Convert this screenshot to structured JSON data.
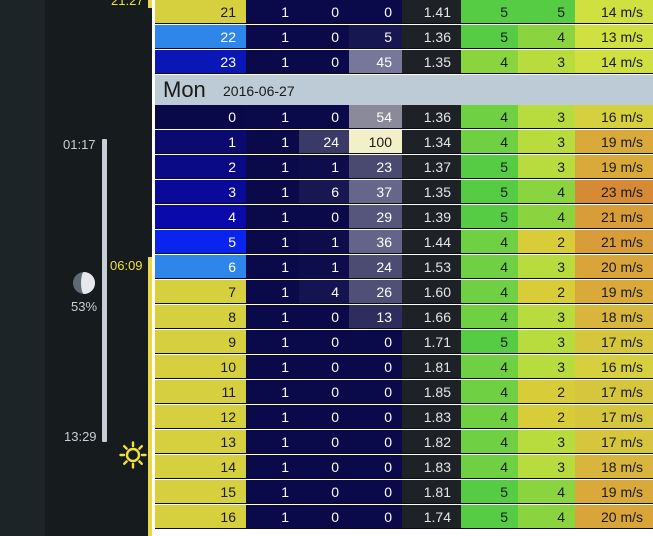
{
  "colors": {
    "sidebar_bg": "#161b1e",
    "day_header_bg": "#bccbd6",
    "moonlight_bar": "#c7ced3",
    "sunlight_bar": "#e8d84a"
  },
  "sidebar": {
    "top_time": "21:27",
    "moonrise_time": "01:17",
    "moonset_time": "13:29",
    "sunrise_time": "06:09",
    "moon_illumination": "53%",
    "moon_icon": "moon-phase-icon",
    "sun_icon": "sun-icon"
  },
  "day_header": {
    "day": "Mon",
    "date": "2016-06-27"
  },
  "rows_prev": [
    {
      "hour": "21",
      "a": "1",
      "b": "0",
      "c": "0",
      "d": "1.41",
      "e": "5",
      "f": "5",
      "g": "14 m/s",
      "hour_bg": "#d6cf3e",
      "hour_fg": "#1a1a1a",
      "b_bg": "#0a0a4a",
      "c_bg": "#0a0a4a",
      "c_fg": "#ffffff",
      "e_bg": "#55cc44",
      "f_bg": "#55cc44",
      "g_bg": "#cfe040"
    },
    {
      "hour": "22",
      "a": "1",
      "b": "0",
      "c": "5",
      "d": "1.36",
      "e": "5",
      "f": "4",
      "g": "13 m/s",
      "hour_bg": "#2f86ea",
      "hour_fg": "#ffffff",
      "b_bg": "#0a0a4a",
      "c_bg": "#161650",
      "c_fg": "#ffffff",
      "e_bg": "#55cc44",
      "f_bg": "#8ad53f",
      "g_bg": "#cfe040"
    },
    {
      "hour": "23",
      "a": "1",
      "b": "0",
      "c": "45",
      "d": "1.35",
      "e": "4",
      "f": "3",
      "g": "14 m/s",
      "hour_bg": "#0a16b5",
      "hour_fg": "#ffffff",
      "b_bg": "#0a0a4a",
      "c_bg": "#777799",
      "c_fg": "#ffffff",
      "e_bg": "#8ad53f",
      "f_bg": "#b8dc3e",
      "g_bg": "#cfe040"
    }
  ],
  "rows_day": [
    {
      "hour": "0",
      "a": "1",
      "b": "0",
      "c": "54",
      "d": "1.36",
      "e": "4",
      "f": "3",
      "g": "16 m/s",
      "hour_bg": "#09094a",
      "hour_fg": "#ffffff",
      "b_bg": "#0a0a4a",
      "c_bg": "#8a8a9a",
      "c_fg": "#ffffff",
      "e_bg": "#6ed042",
      "f_bg": "#b8dc3e",
      "g_bg": "#d6cf3e"
    },
    {
      "hour": "1",
      "a": "1",
      "b": "24",
      "c": "100",
      "d": "1.34",
      "e": "4",
      "f": "3",
      "g": "19 m/s",
      "hour_bg": "#0a0a70",
      "hour_fg": "#ffffff",
      "b_bg": "#3a3a66",
      "c_bg": "#f1f0c8",
      "c_fg": "#1a1a1a",
      "e_bg": "#6ed042",
      "f_bg": "#b8dc3e",
      "g_bg": "#d9aa3a"
    },
    {
      "hour": "2",
      "a": "1",
      "b": "1",
      "c": "23",
      "d": "1.37",
      "e": "5",
      "f": "3",
      "g": "19 m/s",
      "hour_bg": "#0a0a86",
      "hour_fg": "#ffffff",
      "b_bg": "#0d0d4c",
      "c_bg": "#4a4a70",
      "c_fg": "#ffffff",
      "e_bg": "#55cc44",
      "f_bg": "#b8dc3e",
      "g_bg": "#d9aa3a"
    },
    {
      "hour": "3",
      "a": "1",
      "b": "6",
      "c": "37",
      "d": "1.35",
      "e": "5",
      "f": "4",
      "g": "23 m/s",
      "hour_bg": "#0a0a9a",
      "hour_fg": "#ffffff",
      "b_bg": "#171752",
      "c_bg": "#66668a",
      "c_fg": "#ffffff",
      "e_bg": "#55cc44",
      "f_bg": "#8ad53f",
      "g_bg": "#d68a36"
    },
    {
      "hour": "4",
      "a": "1",
      "b": "0",
      "c": "29",
      "d": "1.39",
      "e": "5",
      "f": "4",
      "g": "21 m/s",
      "hour_bg": "#0a0aaa",
      "hour_fg": "#ffffff",
      "b_bg": "#0a0a4a",
      "c_bg": "#56567c",
      "c_fg": "#ffffff",
      "e_bg": "#55cc44",
      "f_bg": "#8ad53f",
      "g_bg": "#d89c38"
    },
    {
      "hour": "5",
      "a": "1",
      "b": "1",
      "c": "36",
      "d": "1.44",
      "e": "4",
      "f": "2",
      "g": "21 m/s",
      "hour_bg": "#0a24f0",
      "hour_fg": "#ffffff",
      "b_bg": "#0d0d4c",
      "c_bg": "#646488",
      "c_fg": "#ffffff",
      "e_bg": "#6ed042",
      "f_bg": "#d8cc38",
      "g_bg": "#d89c38"
    },
    {
      "hour": "6",
      "a": "1",
      "b": "1",
      "c": "24",
      "d": "1.53",
      "e": "4",
      "f": "3",
      "g": "20 m/s",
      "hour_bg": "#2f86ea",
      "hour_fg": "#ffffff",
      "b_bg": "#0d0d4c",
      "c_bg": "#4c4c72",
      "c_fg": "#ffffff",
      "e_bg": "#6ed042",
      "f_bg": "#b8dc3e",
      "g_bg": "#d9a43a"
    },
    {
      "hour": "7",
      "a": "1",
      "b": "4",
      "c": "26",
      "d": "1.60",
      "e": "4",
      "f": "2",
      "g": "19 m/s",
      "hour_bg": "#d6cf3e",
      "hour_fg": "#1a1a1a",
      "b_bg": "#141450",
      "c_bg": "#505076",
      "c_fg": "#ffffff",
      "e_bg": "#6ed042",
      "f_bg": "#d8cc38",
      "g_bg": "#d9aa3a"
    },
    {
      "hour": "8",
      "a": "1",
      "b": "0",
      "c": "13",
      "d": "1.66",
      "e": "4",
      "f": "3",
      "g": "18 m/s",
      "hour_bg": "#d6cf3e",
      "hour_fg": "#1a1a1a",
      "b_bg": "#0a0a4a",
      "c_bg": "#2e2e5e",
      "c_fg": "#ffffff",
      "e_bg": "#6ed042",
      "f_bg": "#b8dc3e",
      "g_bg": "#d8b53c"
    },
    {
      "hour": "9",
      "a": "1",
      "b": "0",
      "c": "0",
      "d": "1.71",
      "e": "5",
      "f": "3",
      "g": "17 m/s",
      "hour_bg": "#d6cf3e",
      "hour_fg": "#1a1a1a",
      "b_bg": "#0a0a4a",
      "c_bg": "#0a0a4a",
      "c_fg": "#ffffff",
      "e_bg": "#55cc44",
      "f_bg": "#b8dc3e",
      "g_bg": "#d6c63e"
    },
    {
      "hour": "10",
      "a": "1",
      "b": "0",
      "c": "0",
      "d": "1.81",
      "e": "4",
      "f": "3",
      "g": "16 m/s",
      "hour_bg": "#d6cf3e",
      "hour_fg": "#1a1a1a",
      "b_bg": "#0a0a4a",
      "c_bg": "#0a0a4a",
      "c_fg": "#ffffff",
      "e_bg": "#6ed042",
      "f_bg": "#b8dc3e",
      "g_bg": "#d6cf3e"
    },
    {
      "hour": "11",
      "a": "1",
      "b": "0",
      "c": "0",
      "d": "1.85",
      "e": "4",
      "f": "2",
      "g": "17 m/s",
      "hour_bg": "#d6cf3e",
      "hour_fg": "#1a1a1a",
      "b_bg": "#0a0a4a",
      "c_bg": "#0a0a4a",
      "c_fg": "#ffffff",
      "e_bg": "#6ed042",
      "f_bg": "#d8cc38",
      "g_bg": "#d6c63e"
    },
    {
      "hour": "12",
      "a": "1",
      "b": "0",
      "c": "0",
      "d": "1.83",
      "e": "4",
      "f": "2",
      "g": "17 m/s",
      "hour_bg": "#d6cf3e",
      "hour_fg": "#1a1a1a",
      "b_bg": "#0a0a4a",
      "c_bg": "#0a0a4a",
      "c_fg": "#ffffff",
      "e_bg": "#6ed042",
      "f_bg": "#d8cc38",
      "g_bg": "#d6c63e"
    },
    {
      "hour": "13",
      "a": "1",
      "b": "0",
      "c": "0",
      "d": "1.82",
      "e": "4",
      "f": "3",
      "g": "17 m/s",
      "hour_bg": "#d6cf3e",
      "hour_fg": "#1a1a1a",
      "b_bg": "#0a0a4a",
      "c_bg": "#0a0a4a",
      "c_fg": "#ffffff",
      "e_bg": "#6ed042",
      "f_bg": "#b8dc3e",
      "g_bg": "#d6c63e"
    },
    {
      "hour": "14",
      "a": "1",
      "b": "0",
      "c": "0",
      "d": "1.83",
      "e": "4",
      "f": "3",
      "g": "18 m/s",
      "hour_bg": "#d6cf3e",
      "hour_fg": "#1a1a1a",
      "b_bg": "#0a0a4a",
      "c_bg": "#0a0a4a",
      "c_fg": "#ffffff",
      "e_bg": "#6ed042",
      "f_bg": "#b8dc3e",
      "g_bg": "#d8b53c"
    },
    {
      "hour": "15",
      "a": "1",
      "b": "0",
      "c": "0",
      "d": "1.81",
      "e": "5",
      "f": "4",
      "g": "19 m/s",
      "hour_bg": "#d6cf3e",
      "hour_fg": "#1a1a1a",
      "b_bg": "#0a0a4a",
      "c_bg": "#0a0a4a",
      "c_fg": "#ffffff",
      "e_bg": "#55cc44",
      "f_bg": "#8ad53f",
      "g_bg": "#d9aa3a"
    },
    {
      "hour": "16",
      "a": "1",
      "b": "0",
      "c": "0",
      "d": "1.74",
      "e": "5",
      "f": "4",
      "g": "20 m/s",
      "hour_bg": "#d6cf3e",
      "hour_fg": "#1a1a1a",
      "b_bg": "#0a0a4a",
      "c_bg": "#0a0a4a",
      "c_fg": "#ffffff",
      "e_bg": "#55cc44",
      "f_bg": "#8ad53f",
      "g_bg": "#d9a43a"
    }
  ]
}
